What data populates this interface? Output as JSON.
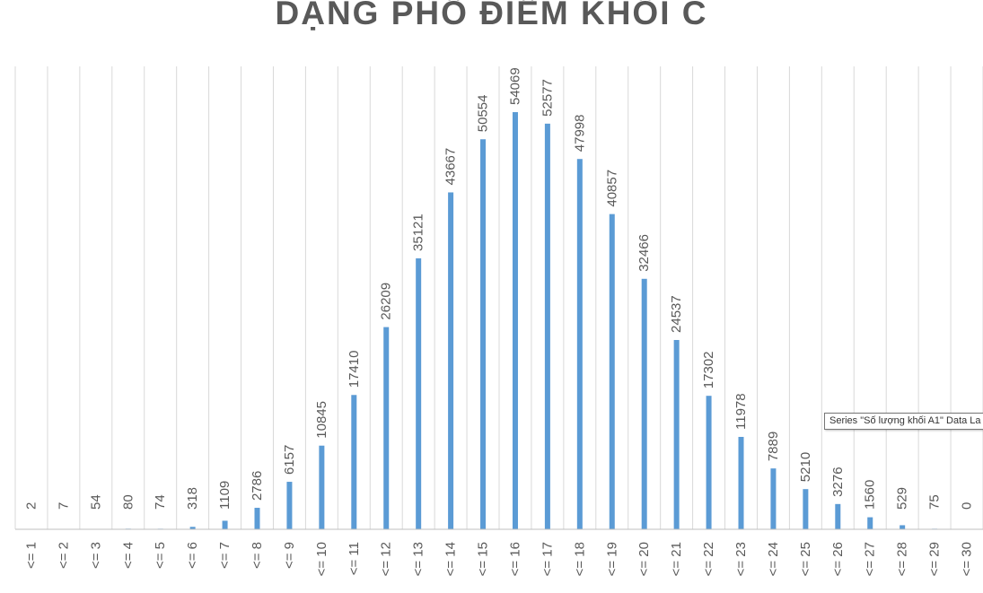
{
  "chart_data": {
    "type": "bar",
    "title": "DẠNG PHỔ ĐIỂM KHỐI C",
    "categories": [
      "<= 1",
      "<= 2",
      "<= 3",
      "<= 4",
      "<= 5",
      "<= 6",
      "<= 7",
      "<= 8",
      "<= 9",
      "<= 10",
      "<= 11",
      "<= 12",
      "<= 13",
      "<= 14",
      "<= 15",
      "<= 16",
      "<= 17",
      "<= 18",
      "<= 19",
      "<= 20",
      "<= 21",
      "<= 22",
      "<= 23",
      "<= 24",
      "<= 25",
      "<= 26",
      "<= 27",
      "<= 28",
      "<= 29",
      "<= 30"
    ],
    "values": [
      2,
      7,
      54,
      80,
      74,
      318,
      1109,
      2786,
      6157,
      10845,
      17410,
      26209,
      35121,
      43667,
      50554,
      54069,
      52577,
      47998,
      40857,
      32466,
      24537,
      17302,
      11978,
      7889,
      5210,
      3276,
      1560,
      529,
      75,
      0
    ],
    "ylim": [
      0,
      60000
    ],
    "grid": "vertical",
    "bar_color": "#5b9bd5",
    "grid_color": "#d9d9d9",
    "axis_color": "#bfbfbf",
    "text_color": "#595959"
  },
  "tooltip": {
    "text": "Series \"Số lượng khối A1\" Data La"
  }
}
